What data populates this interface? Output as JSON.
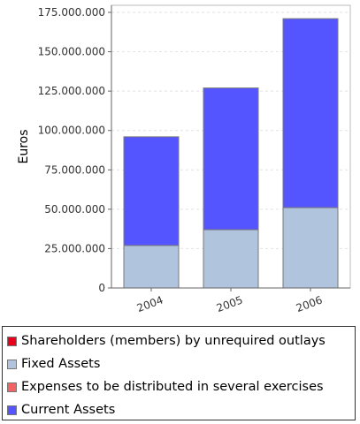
{
  "chart_data": {
    "type": "bar",
    "stacked": true,
    "categories": [
      "2004",
      "2005",
      "2006"
    ],
    "series": [
      {
        "name": "Shareholders (members) by unrequired outlays",
        "color": "#e8001c",
        "values": [
          0,
          0,
          0
        ]
      },
      {
        "name": "Fixed Assets",
        "color": "#b0c4de",
        "values": [
          27000000,
          37000000,
          51000000
        ]
      },
      {
        "name": "Expenses to be distributed in several exercises",
        "color": "#f26464",
        "values": [
          0,
          0,
          0
        ]
      },
      {
        "name": "Current Assets",
        "color": "#5555ff",
        "values": [
          69000000,
          90000000,
          120000000
        ]
      }
    ],
    "ylabel": "Euros",
    "ylim": [
      0,
      175000000
    ],
    "yticks": [
      0,
      25000000,
      50000000,
      75000000,
      100000000,
      125000000,
      150000000,
      175000000
    ],
    "ytick_labels": [
      "0",
      "25.000.000",
      "50.000.000",
      "75.000.000",
      "100.000.000",
      "125.000.000",
      "150.000.000",
      "175.000.000"
    ],
    "grid": true,
    "legend_position": "bottom"
  }
}
